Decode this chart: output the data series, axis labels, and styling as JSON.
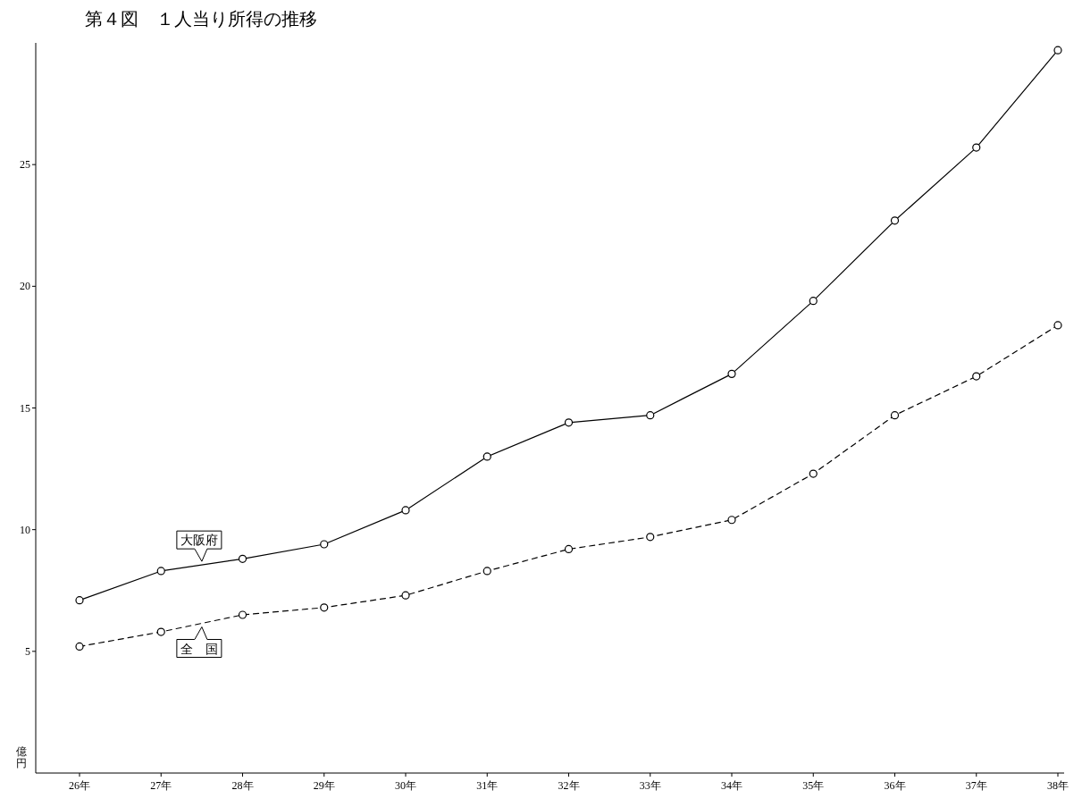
{
  "chart_data": {
    "type": "line",
    "title": "第４図　１人当り所得の推移",
    "ylabel": "億円",
    "categories": [
      "26年",
      "27年",
      "28年",
      "29年",
      "30年",
      "31年",
      "32年",
      "33年",
      "34年",
      "35年",
      "36年",
      "37年",
      "38年"
    ],
    "series": [
      {
        "name": "大阪府",
        "color": "#000000",
        "line_style": "solid",
        "values": [
          7.1,
          8.3,
          8.8,
          9.4,
          10.8,
          13.0,
          14.4,
          14.7,
          16.4,
          19.4,
          22.7,
          25.7,
          29.7
        ]
      },
      {
        "name": "全　国",
        "color": "#000000",
        "line_style": "dashed",
        "values": [
          5.2,
          5.8,
          6.5,
          6.8,
          7.3,
          8.3,
          9.2,
          9.7,
          10.4,
          12.3,
          14.7,
          16.3,
          18.4
        ]
      }
    ],
    "ylim": [
      0,
      30
    ],
    "yticks": [
      5,
      10,
      15,
      20,
      25
    ],
    "marker": "circle",
    "grid": false,
    "legend": false
  }
}
